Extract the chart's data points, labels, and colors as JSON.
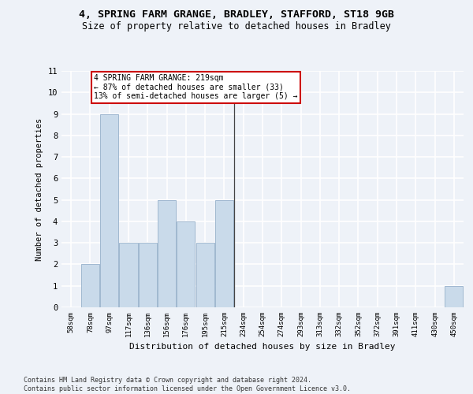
{
  "title_line1": "4, SPRING FARM GRANGE, BRADLEY, STAFFORD, ST18 9GB",
  "title_line2": "Size of property relative to detached houses in Bradley",
  "xlabel": "Distribution of detached houses by size in Bradley",
  "ylabel": "Number of detached properties",
  "footer": "Contains HM Land Registry data © Crown copyright and database right 2024.\nContains public sector information licensed under the Open Government Licence v3.0.",
  "bins": [
    "58sqm",
    "78sqm",
    "97sqm",
    "117sqm",
    "136sqm",
    "156sqm",
    "176sqm",
    "195sqm",
    "215sqm",
    "234sqm",
    "254sqm",
    "274sqm",
    "293sqm",
    "313sqm",
    "332sqm",
    "352sqm",
    "372sqm",
    "391sqm",
    "411sqm",
    "430sqm",
    "450sqm"
  ],
  "values": [
    0,
    2,
    9,
    3,
    3,
    5,
    4,
    3,
    5,
    0,
    0,
    0,
    0,
    0,
    0,
    0,
    0,
    0,
    0,
    0,
    1
  ],
  "bar_color": "#c9daea",
  "bar_edge_color": "#a0b8d0",
  "vline_x": 8.5,
  "vline_color": "#444444",
  "annotation_text": "4 SPRING FARM GRANGE: 219sqm\n← 87% of detached houses are smaller (33)\n13% of semi-detached houses are larger (5) →",
  "annotation_box_color": "#ffffff",
  "annotation_box_edge": "#cc0000",
  "ylim": [
    0,
    11
  ],
  "yticks": [
    0,
    1,
    2,
    3,
    4,
    5,
    6,
    7,
    8,
    9,
    10,
    11
  ],
  "background_color": "#eef2f8",
  "grid_color": "#ffffff",
  "title_fontsize": 9.5,
  "subtitle_fontsize": 8.5,
  "footer_fontsize": 6.0
}
